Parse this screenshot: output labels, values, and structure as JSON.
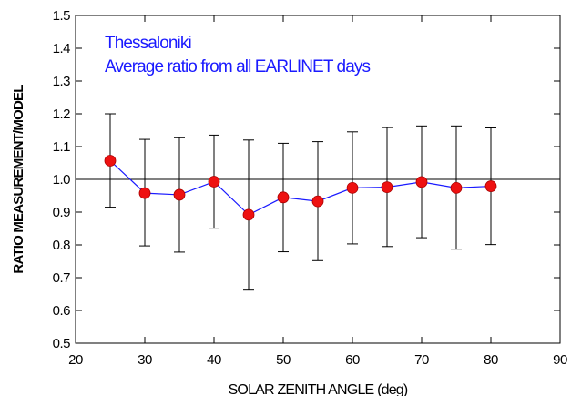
{
  "chart_data": {
    "type": "scatter",
    "xlabel": "SOLAR ZENITH ANGLE (deg)",
    "ylabel": "RATIO MEASUREMENT/MODEL",
    "xlim": [
      20,
      90
    ],
    "ylim": [
      0.5,
      1.5
    ],
    "x_ticks": [
      20,
      30,
      40,
      50,
      60,
      70,
      80,
      90
    ],
    "y_ticks": [
      0.5,
      0.6,
      0.7,
      0.8,
      0.9,
      1.0,
      1.1,
      1.2,
      1.3,
      1.4,
      1.5
    ],
    "y_tick_labels": [
      "0.5",
      "0.6",
      "0.7",
      "0.8",
      "0.9",
      "1.0",
      "1.1",
      "1.2",
      "1.3",
      "1.4",
      "1.5"
    ],
    "reference_line": 1.0,
    "annotations": [
      "Thessaloniki",
      "Average ratio from all EARLINET days"
    ],
    "series": [
      {
        "x": [
          25,
          30,
          35,
          40,
          45,
          50,
          55,
          60,
          65,
          70,
          75,
          80
        ],
        "y": [
          1.057,
          0.958,
          0.953,
          0.993,
          0.892,
          0.945,
          0.933,
          0.974,
          0.976,
          0.992,
          0.974,
          0.979
        ],
        "err_low": [
          0.915,
          0.797,
          0.778,
          0.851,
          0.662,
          0.779,
          0.752,
          0.803,
          0.795,
          0.822,
          0.787,
          0.801
        ],
        "err_high": [
          1.2,
          1.122,
          1.127,
          1.135,
          1.12,
          1.11,
          1.115,
          1.145,
          1.158,
          1.163,
          1.163,
          1.157
        ]
      }
    ],
    "colors": {
      "marker": "#ee1111",
      "marker_edge": "#aa0000",
      "line": "#1a1aff",
      "errorbar": "#000000",
      "annotation": "#1a1aff",
      "axis": "#000000"
    }
  }
}
